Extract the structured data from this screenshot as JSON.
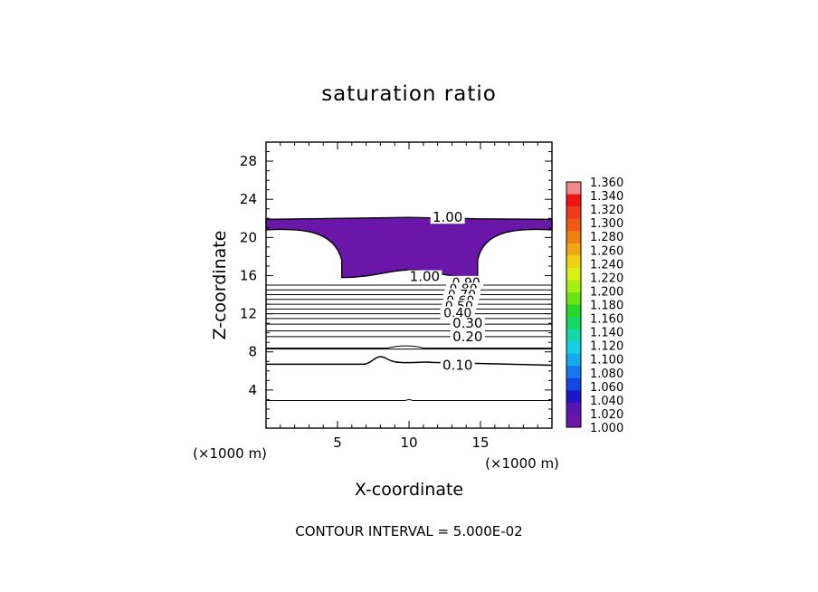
{
  "chart_data": {
    "type": "contour",
    "title": "saturation ratio",
    "xlabel": "X-coordinate",
    "ylabel": "Z-coordinate",
    "x_unit": "(×1000 m)",
    "y_unit": "(×1000 m)",
    "xlim": [
      0,
      20
    ],
    "ylim": [
      0,
      30
    ],
    "x_ticks": [
      5,
      10,
      15
    ],
    "y_ticks": [
      4,
      8,
      12,
      16,
      20,
      24,
      28
    ],
    "contour_interval_text": "CONTOUR INTERVAL = 5.000E-02",
    "filled_region": {
      "min_value": 1.0,
      "color": "#6a16a8"
    },
    "contour_labels": [
      "1.00",
      "1.00",
      "0.90",
      "0.80",
      "0.70",
      "0.60",
      "0.50",
      "0.40",
      "0.30",
      "0.20",
      "0.10"
    ],
    "flat_contours": [
      {
        "z": 15.0
      },
      {
        "z": 14.5
      },
      {
        "z": 14.0
      },
      {
        "z": 13.5
      },
      {
        "z": 13.0
      },
      {
        "z": 12.5
      },
      {
        "z": 12.0
      },
      {
        "z": 11.5
      },
      {
        "z": 10.9
      },
      {
        "z": 10.2
      },
      {
        "z": 9.6
      },
      {
        "z": 8.3
      }
    ],
    "lower_contours": [
      {
        "value": "0.10",
        "z": 6.7,
        "bump_x": 7.9,
        "bump_z": 7.5
      },
      {
        "value": "0.05",
        "z": 2.9,
        "bump_x": 10.0,
        "bump_z": 3.0
      }
    ],
    "colorbar": {
      "labels": [
        "1.360",
        "1.340",
        "1.320",
        "1.300",
        "1.280",
        "1.260",
        "1.240",
        "1.220",
        "1.200",
        "1.180",
        "1.160",
        "1.140",
        "1.120",
        "1.100",
        "1.080",
        "1.060",
        "1.040",
        "1.020",
        "1.000"
      ],
      "colors": [
        "#f08a8a",
        "#f01414",
        "#f03a1e",
        "#f05a14",
        "#f08014",
        "#f0a814",
        "#f0d214",
        "#d8f014",
        "#a8f014",
        "#6ae614",
        "#28d828",
        "#14d864",
        "#14d8aa",
        "#14d0e6",
        "#14aaf0",
        "#1478f0",
        "#1446e6",
        "#1e14c8",
        "#5a14b4",
        "#6a16a8"
      ]
    }
  }
}
